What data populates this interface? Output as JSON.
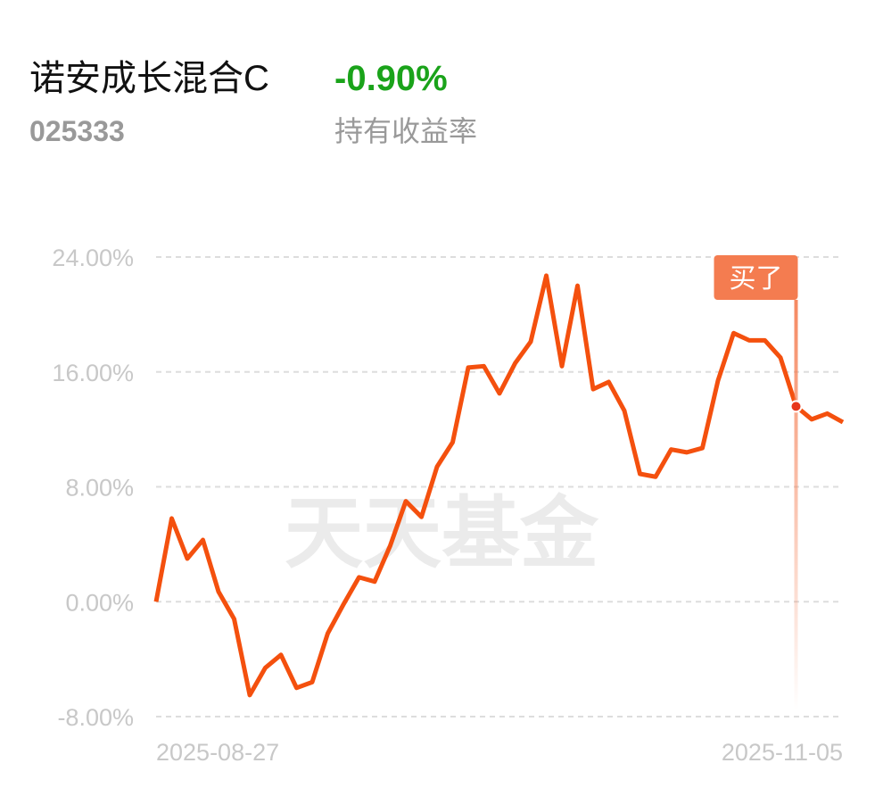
{
  "header": {
    "title": "诺安成长混合C",
    "code": "025333",
    "return": "-0.90%",
    "return_label": "持有收益率"
  },
  "chart_data": {
    "type": "line",
    "watermark": "天天基金",
    "categories": [
      "2025-08-27",
      null,
      null,
      null,
      null,
      null,
      null,
      null,
      null,
      null,
      null,
      null,
      null,
      null,
      null,
      null,
      null,
      null,
      null,
      null,
      null,
      null,
      null,
      null,
      null,
      null,
      null,
      null,
      null,
      null,
      null,
      null,
      null,
      null,
      null,
      null,
      null,
      null,
      null,
      null,
      null,
      null,
      null,
      null,
      "2025-11-05"
    ],
    "values": [
      0,
      5.8,
      3.0,
      4.3,
      0.7,
      -1.2,
      -6.5,
      -4.6,
      -3.7,
      -6.0,
      -5.6,
      -2.2,
      -0.2,
      1.7,
      1.4,
      3.9,
      7.0,
      5.9,
      9.4,
      11.1,
      16.3,
      16.4,
      14.5,
      16.6,
      18.1,
      22.7,
      16.4,
      22.0,
      14.8,
      15.3,
      13.3,
      8.9,
      8.7,
      10.6,
      10.4,
      10.7,
      15.4,
      18.7,
      18.2,
      18.2,
      17.0,
      13.6,
      12.7,
      13.1,
      12.5
    ],
    "marker_labels": [
      null,
      null,
      null,
      null,
      null,
      null,
      null,
      null,
      null,
      null,
      null,
      null,
      null,
      null,
      null,
      null,
      null,
      null,
      null,
      null,
      null,
      null,
      null,
      null,
      null,
      null,
      null,
      null,
      null,
      null,
      null,
      null,
      null,
      null,
      null,
      null,
      null,
      null,
      null,
      null,
      null,
      "买了",
      null,
      null,
      null
    ],
    "color": "#f4500e",
    "marker_color": "#f47c50",
    "ylim": [
      -8,
      24
    ],
    "yticks": [
      {
        "value": -8,
        "label": "-8.00%"
      },
      {
        "value": 0,
        "label": "0.00%"
      },
      {
        "value": 8,
        "label": "8.00%"
      },
      {
        "value": 16,
        "label": "16.00%"
      },
      {
        "value": 24,
        "label": "24.00%"
      }
    ],
    "grid": true
  }
}
